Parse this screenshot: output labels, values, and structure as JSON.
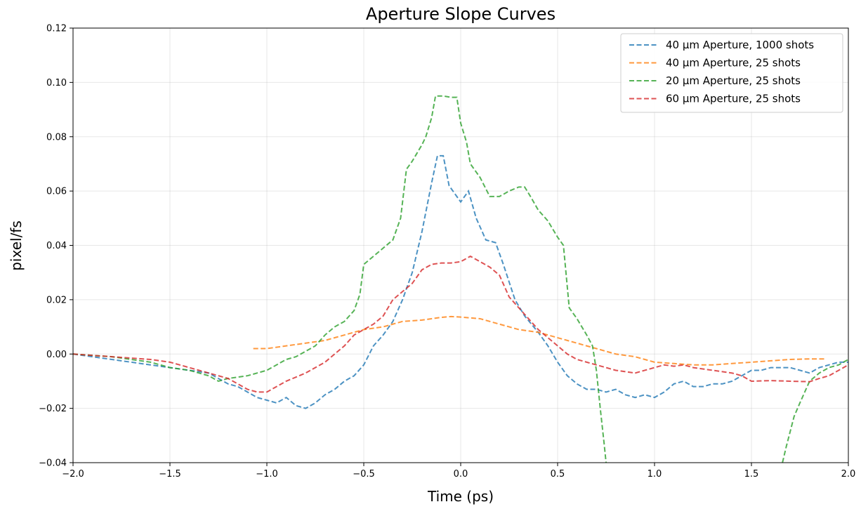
{
  "chart_data": {
    "type": "line",
    "title": "Aperture Slope Curves",
    "xlabel": "Time (ps)",
    "ylabel": "pixel/fs",
    "xlim": [
      -2.0,
      2.0
    ],
    "ylim": [
      -0.04,
      0.12
    ],
    "x_ticks": [
      -2.0,
      -1.5,
      -1.0,
      -0.5,
      0.0,
      0.5,
      1.0,
      1.5,
      2.0
    ],
    "x_tick_labels": [
      "−2.0",
      "−1.5",
      "−1.0",
      "−0.5",
      "0.0",
      "0.5",
      "1.0",
      "1.5",
      "2.0"
    ],
    "y_ticks": [
      -0.04,
      -0.02,
      0.0,
      0.02,
      0.04,
      0.06,
      0.08,
      0.1,
      0.12
    ],
    "y_tick_labels": [
      "−0.04",
      "−0.02",
      "0.00",
      "0.02",
      "0.04",
      "0.06",
      "0.08",
      "0.10",
      "0.12"
    ],
    "grid": true,
    "legend_position": "top-right",
    "line_style": "dashed",
    "series": [
      {
        "name": "40 µm Aperture, 1000 shots",
        "color": "#1f77b4",
        "points": [
          [
            -2.0,
            0.0
          ],
          [
            -1.9,
            -0.001
          ],
          [
            -1.8,
            -0.002
          ],
          [
            -1.7,
            -0.003
          ],
          [
            -1.6,
            -0.004
          ],
          [
            -1.5,
            -0.005
          ],
          [
            -1.4,
            -0.006
          ],
          [
            -1.3,
            -0.007
          ],
          [
            -1.25,
            -0.009
          ],
          [
            -1.2,
            -0.011
          ],
          [
            -1.15,
            -0.012
          ],
          [
            -1.1,
            -0.014
          ],
          [
            -1.05,
            -0.016
          ],
          [
            -1.0,
            -0.017
          ],
          [
            -0.95,
            -0.018
          ],
          [
            -0.9,
            -0.016
          ],
          [
            -0.85,
            -0.019
          ],
          [
            -0.8,
            -0.02
          ],
          [
            -0.75,
            -0.018
          ],
          [
            -0.7,
            -0.015
          ],
          [
            -0.65,
            -0.013
          ],
          [
            -0.6,
            -0.01
          ],
          [
            -0.55,
            -0.008
          ],
          [
            -0.5,
            -0.004
          ],
          [
            -0.45,
            0.003
          ],
          [
            -0.4,
            0.007
          ],
          [
            -0.35,
            0.012
          ],
          [
            -0.3,
            0.02
          ],
          [
            -0.25,
            0.03
          ],
          [
            -0.2,
            0.045
          ],
          [
            -0.15,
            0.063
          ],
          [
            -0.12,
            0.073
          ],
          [
            -0.09,
            0.073
          ],
          [
            -0.06,
            0.062
          ],
          [
            -0.02,
            0.058
          ],
          [
            0.0,
            0.056
          ],
          [
            0.04,
            0.06
          ],
          [
            0.08,
            0.05
          ],
          [
            0.13,
            0.042
          ],
          [
            0.18,
            0.041
          ],
          [
            0.22,
            0.033
          ],
          [
            0.28,
            0.02
          ],
          [
            0.33,
            0.014
          ],
          [
            0.4,
            0.008
          ],
          [
            0.45,
            0.003
          ],
          [
            0.5,
            -0.003
          ],
          [
            0.55,
            -0.008
          ],
          [
            0.6,
            -0.011
          ],
          [
            0.65,
            -0.013
          ],
          [
            0.7,
            -0.013
          ],
          [
            0.75,
            -0.014
          ],
          [
            0.8,
            -0.013
          ],
          [
            0.85,
            -0.015
          ],
          [
            0.9,
            -0.016
          ],
          [
            0.95,
            -0.015
          ],
          [
            1.0,
            -0.016
          ],
          [
            1.05,
            -0.014
          ],
          [
            1.1,
            -0.011
          ],
          [
            1.15,
            -0.01
          ],
          [
            1.2,
            -0.012
          ],
          [
            1.25,
            -0.012
          ],
          [
            1.3,
            -0.011
          ],
          [
            1.35,
            -0.011
          ],
          [
            1.4,
            -0.01
          ],
          [
            1.45,
            -0.008
          ],
          [
            1.5,
            -0.006
          ],
          [
            1.55,
            -0.006
          ],
          [
            1.6,
            -0.005
          ],
          [
            1.65,
            -0.005
          ],
          [
            1.7,
            -0.005
          ],
          [
            1.75,
            -0.006
          ],
          [
            1.8,
            -0.007
          ],
          [
            1.85,
            -0.005
          ],
          [
            1.9,
            -0.004
          ],
          [
            1.95,
            -0.003
          ],
          [
            2.0,
            -0.003
          ]
        ]
      },
      {
        "name": "40 µm Aperture, 25 shots",
        "color": "#ff7f0e",
        "points": [
          [
            -1.07,
            0.002
          ],
          [
            -1.0,
            0.002
          ],
          [
            -0.9,
            0.003
          ],
          [
            -0.8,
            0.004
          ],
          [
            -0.7,
            0.005
          ],
          [
            -0.6,
            0.007
          ],
          [
            -0.5,
            0.009
          ],
          [
            -0.4,
            0.01
          ],
          [
            -0.3,
            0.012
          ],
          [
            -0.2,
            0.0125
          ],
          [
            -0.1,
            0.0135
          ],
          [
            -0.05,
            0.0138
          ],
          [
            0.0,
            0.0136
          ],
          [
            0.1,
            0.013
          ],
          [
            0.2,
            0.011
          ],
          [
            0.3,
            0.009
          ],
          [
            0.4,
            0.008
          ],
          [
            0.5,
            0.006
          ],
          [
            0.6,
            0.004
          ],
          [
            0.7,
            0.002
          ],
          [
            0.8,
            0.0
          ],
          [
            0.9,
            -0.001
          ],
          [
            1.0,
            -0.003
          ],
          [
            1.1,
            -0.0035
          ],
          [
            1.2,
            -0.004
          ],
          [
            1.3,
            -0.004
          ],
          [
            1.4,
            -0.0035
          ],
          [
            1.5,
            -0.003
          ],
          [
            1.6,
            -0.0025
          ],
          [
            1.7,
            -0.002
          ],
          [
            1.8,
            -0.0018
          ],
          [
            1.88,
            -0.0018
          ]
        ]
      },
      {
        "name": "20 µm Aperture, 25 shots",
        "color": "#2ca02c",
        "points": [
          [
            -2.0,
            0.0
          ],
          [
            -1.8,
            -0.001
          ],
          [
            -1.6,
            -0.003
          ],
          [
            -1.5,
            -0.005
          ],
          [
            -1.4,
            -0.006
          ],
          [
            -1.3,
            -0.008
          ],
          [
            -1.25,
            -0.01
          ],
          [
            -1.2,
            -0.009
          ],
          [
            -1.1,
            -0.008
          ],
          [
            -1.0,
            -0.006
          ],
          [
            -0.95,
            -0.004
          ],
          [
            -0.9,
            -0.002
          ],
          [
            -0.85,
            -0.001
          ],
          [
            -0.8,
            0.001
          ],
          [
            -0.75,
            0.003
          ],
          [
            -0.7,
            0.007
          ],
          [
            -0.65,
            0.01
          ],
          [
            -0.6,
            0.012
          ],
          [
            -0.55,
            0.016
          ],
          [
            -0.52,
            0.022
          ],
          [
            -0.5,
            0.033
          ],
          [
            -0.45,
            0.036
          ],
          [
            -0.4,
            0.039
          ],
          [
            -0.35,
            0.042
          ],
          [
            -0.31,
            0.05
          ],
          [
            -0.28,
            0.068
          ],
          [
            -0.25,
            0.071
          ],
          [
            -0.2,
            0.077
          ],
          [
            -0.18,
            0.08
          ],
          [
            -0.15,
            0.087
          ],
          [
            -0.13,
            0.095
          ],
          [
            -0.09,
            0.095
          ],
          [
            -0.05,
            0.0945
          ],
          [
            -0.02,
            0.0945
          ],
          [
            0.0,
            0.085
          ],
          [
            0.03,
            0.078
          ],
          [
            0.05,
            0.07
          ],
          [
            0.1,
            0.065
          ],
          [
            0.15,
            0.058
          ],
          [
            0.2,
            0.058
          ],
          [
            0.25,
            0.06
          ],
          [
            0.3,
            0.0615
          ],
          [
            0.33,
            0.0615
          ],
          [
            0.36,
            0.058
          ],
          [
            0.4,
            0.053
          ],
          [
            0.45,
            0.049
          ],
          [
            0.5,
            0.043
          ],
          [
            0.53,
            0.04
          ],
          [
            0.56,
            0.017
          ],
          [
            0.6,
            0.013
          ],
          [
            0.65,
            0.007
          ],
          [
            0.68,
            0.003
          ],
          [
            0.7,
            -0.006
          ],
          [
            0.72,
            -0.02
          ],
          [
            0.74,
            -0.033
          ],
          [
            0.75,
            -0.04
          ]
        ]
      },
      {
        "name": "20 µm Aperture, 25 shots (cont.)",
        "color": "#2ca02c",
        "legend": false,
        "points": [
          [
            1.66,
            -0.04
          ],
          [
            1.68,
            -0.034
          ],
          [
            1.72,
            -0.023
          ],
          [
            1.75,
            -0.018
          ],
          [
            1.8,
            -0.01
          ],
          [
            1.85,
            -0.007
          ],
          [
            1.9,
            -0.005
          ],
          [
            1.95,
            -0.004
          ],
          [
            2.0,
            -0.002
          ]
        ]
      },
      {
        "name": "60 µm Aperture, 25 shots",
        "color": "#d62728",
        "points": [
          [
            -2.0,
            0.0
          ],
          [
            -1.9,
            -0.0005
          ],
          [
            -1.8,
            -0.001
          ],
          [
            -1.7,
            -0.0015
          ],
          [
            -1.6,
            -0.002
          ],
          [
            -1.5,
            -0.003
          ],
          [
            -1.4,
            -0.005
          ],
          [
            -1.3,
            -0.007
          ],
          [
            -1.2,
            -0.009
          ],
          [
            -1.15,
            -0.011
          ],
          [
            -1.1,
            -0.013
          ],
          [
            -1.05,
            -0.014
          ],
          [
            -1.0,
            -0.014
          ],
          [
            -0.95,
            -0.012
          ],
          [
            -0.9,
            -0.01
          ],
          [
            -0.8,
            -0.007
          ],
          [
            -0.7,
            -0.003
          ],
          [
            -0.6,
            0.003
          ],
          [
            -0.55,
            0.007
          ],
          [
            -0.5,
            0.009
          ],
          [
            -0.45,
            0.011
          ],
          [
            -0.4,
            0.014
          ],
          [
            -0.35,
            0.02
          ],
          [
            -0.3,
            0.023
          ],
          [
            -0.25,
            0.026
          ],
          [
            -0.2,
            0.031
          ],
          [
            -0.15,
            0.033
          ],
          [
            -0.1,
            0.0335
          ],
          [
            -0.05,
            0.0335
          ],
          [
            0.0,
            0.034
          ],
          [
            0.05,
            0.036
          ],
          [
            0.1,
            0.034
          ],
          [
            0.15,
            0.032
          ],
          [
            0.2,
            0.029
          ],
          [
            0.25,
            0.021
          ],
          [
            0.3,
            0.017
          ],
          [
            0.35,
            0.013
          ],
          [
            0.4,
            0.009
          ],
          [
            0.45,
            0.006
          ],
          [
            0.5,
            0.003
          ],
          [
            0.55,
            0.0
          ],
          [
            0.6,
            -0.002
          ],
          [
            0.65,
            -0.003
          ],
          [
            0.7,
            -0.004
          ],
          [
            0.75,
            -0.005
          ],
          [
            0.8,
            -0.006
          ],
          [
            0.85,
            -0.0065
          ],
          [
            0.9,
            -0.007
          ],
          [
            0.95,
            -0.006
          ],
          [
            1.0,
            -0.005
          ],
          [
            1.05,
            -0.004
          ],
          [
            1.1,
            -0.0045
          ],
          [
            1.15,
            -0.004
          ],
          [
            1.2,
            -0.005
          ],
          [
            1.3,
            -0.006
          ],
          [
            1.4,
            -0.007
          ],
          [
            1.45,
            -0.008
          ],
          [
            1.5,
            -0.01
          ],
          [
            1.6,
            -0.0098
          ],
          [
            1.7,
            -0.01
          ],
          [
            1.8,
            -0.0102
          ],
          [
            1.85,
            -0.009
          ],
          [
            1.9,
            -0.008
          ],
          [
            1.95,
            -0.006
          ],
          [
            2.0,
            -0.004
          ]
        ]
      }
    ]
  }
}
